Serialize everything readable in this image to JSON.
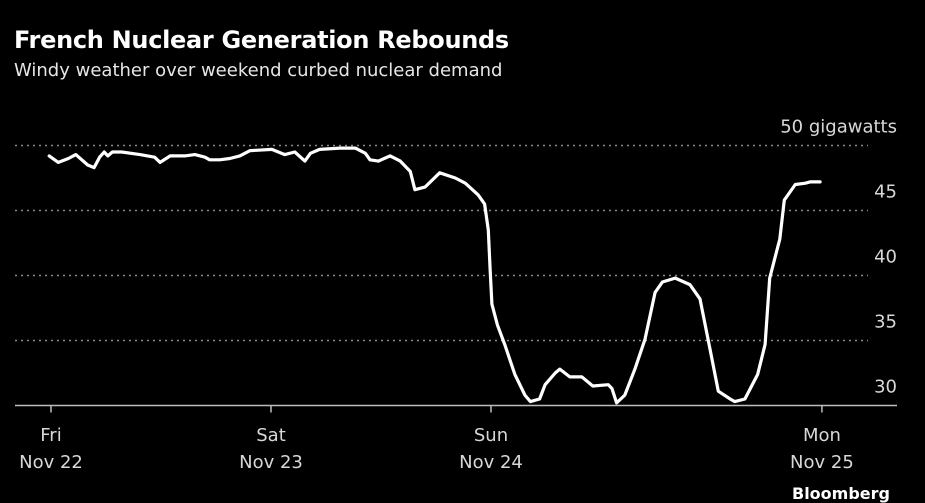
{
  "chart_data": {
    "type": "line",
    "title": "French Nuclear Generation Rebounds",
    "subtitle": "Windy weather over weekend curbed nuclear demand",
    "ylabel_unit": "gigawatts",
    "ylim": [
      30,
      50
    ],
    "yticks": [
      30,
      35,
      40,
      45,
      50
    ],
    "ytick_labels": [
      "30",
      "35",
      "40",
      "45",
      "50 gigawatts"
    ],
    "xticks": [
      {
        "x": 0,
        "line1": "Fri",
        "line2": "Nov 22"
      },
      {
        "x": 24,
        "line1": "Sat",
        "line2": "Nov 23"
      },
      {
        "x": 48,
        "line1": "Sun",
        "line2": "Nov 24"
      },
      {
        "x": 84.1,
        "line1": "Mon",
        "line2": "Nov 25"
      }
    ],
    "grid": true,
    "line_color": "#ffffff",
    "background": "#000000",
    "points": [
      [
        -0.2,
        49.2
      ],
      [
        0.8,
        48.7
      ],
      [
        1.9,
        49.0
      ],
      [
        2.7,
        49.3
      ],
      [
        4.0,
        48.5
      ],
      [
        4.7,
        48.3
      ],
      [
        5.3,
        49.1
      ],
      [
        5.8,
        49.5
      ],
      [
        6.2,
        49.2
      ],
      [
        6.7,
        49.5
      ],
      [
        7.7,
        49.5
      ],
      [
        9.7,
        49.3
      ],
      [
        11.3,
        49.1
      ],
      [
        11.9,
        48.7
      ],
      [
        13.0,
        49.2
      ],
      [
        14.6,
        49.2
      ],
      [
        15.7,
        49.3
      ],
      [
        16.8,
        49.1
      ],
      [
        17.3,
        48.9
      ],
      [
        18.4,
        48.9
      ],
      [
        19.5,
        49.0
      ],
      [
        20.6,
        49.2
      ],
      [
        21.7,
        49.6
      ],
      [
        24.1,
        49.7
      ],
      [
        25.5,
        49.3
      ],
      [
        26.6,
        49.5
      ],
      [
        27.7,
        48.8
      ],
      [
        28.3,
        49.4
      ],
      [
        29.3,
        49.7
      ],
      [
        31.5,
        49.8
      ],
      [
        33.2,
        49.8
      ],
      [
        34.3,
        49.4
      ],
      [
        34.8,
        48.9
      ],
      [
        35.7,
        48.8
      ],
      [
        37.0,
        49.2
      ],
      [
        38.1,
        48.8
      ],
      [
        39.2,
        48.0
      ],
      [
        39.7,
        46.6
      ],
      [
        40.8,
        46.8
      ],
      [
        42.4,
        47.9
      ],
      [
        44.1,
        47.5
      ],
      [
        45.2,
        47.1
      ],
      [
        46.6,
        46.2
      ],
      [
        47.3,
        45.5
      ],
      [
        47.7,
        43.5
      ],
      [
        47.9,
        40.5
      ],
      [
        48.1,
        37.8
      ],
      [
        48.7,
        36.2
      ],
      [
        49.5,
        34.7
      ],
      [
        50.6,
        32.4
      ],
      [
        51.7,
        30.8
      ],
      [
        52.3,
        30.3
      ],
      [
        53.3,
        30.5
      ],
      [
        53.9,
        31.6
      ],
      [
        55.0,
        32.5
      ],
      [
        55.5,
        32.8
      ],
      [
        56.6,
        32.2
      ],
      [
        57.9,
        32.2
      ],
      [
        59.1,
        31.5
      ],
      [
        60.8,
        31.6
      ],
      [
        61.2,
        31.3
      ],
      [
        61.7,
        30.2
      ],
      [
        62.6,
        30.8
      ],
      [
        63.7,
        32.8
      ],
      [
        64.8,
        35.1
      ],
      [
        65.9,
        38.7
      ],
      [
        66.7,
        39.5
      ],
      [
        68.1,
        39.8
      ],
      [
        69.7,
        39.3
      ],
      [
        70.8,
        38.2
      ],
      [
        71.9,
        34.3
      ],
      [
        72.8,
        31.1
      ],
      [
        74.1,
        30.5
      ],
      [
        74.6,
        30.3
      ],
      [
        75.7,
        30.5
      ],
      [
        77.1,
        32.4
      ],
      [
        77.9,
        34.7
      ],
      [
        78.4,
        39.8
      ],
      [
        79.5,
        42.8
      ],
      [
        80.0,
        45.8
      ],
      [
        81.2,
        47.0
      ],
      [
        82.3,
        47.1
      ],
      [
        82.8,
        47.2
      ],
      [
        83.9,
        47.2
      ]
    ]
  },
  "source_logo": "Bloomberg"
}
